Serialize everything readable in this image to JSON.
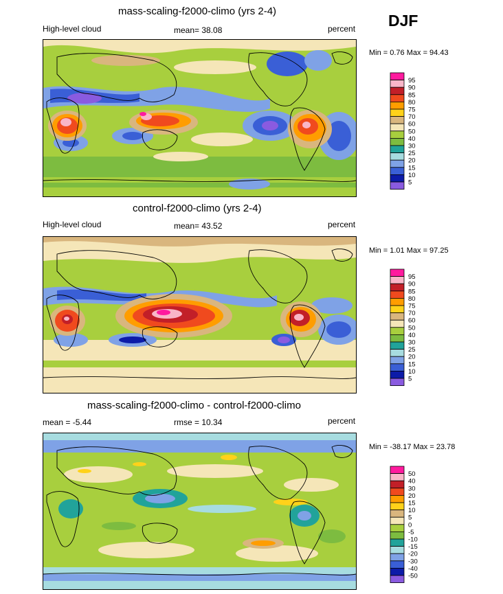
{
  "season": "DJF",
  "panels": [
    {
      "title": "mass-scaling-f2000-climo (yrs 2-4)",
      "left_label": "High-level cloud",
      "center_label": "mean=  38.08",
      "units": "percent",
      "minmax": "Min =   0.76 Max =  94.43",
      "levels": [
        "95",
        "90",
        "85",
        "80",
        "75",
        "70",
        "60",
        "50",
        "40",
        "30",
        "25",
        "20",
        "15",
        "10",
        "5"
      ],
      "colors": [
        "#ff1a9e",
        "#f9b6c8",
        "#c21f28",
        "#f04a1e",
        "#ff9d00",
        "#ffd21a",
        "#d9b67e",
        "#f5e6b8",
        "#a8cf3e",
        "#7dbc40",
        "#21a39a",
        "#a7dce0",
        "#7fa2e6",
        "#3a5fd6",
        "#0c1ba8",
        "#8a5be0"
      ]
    },
    {
      "title": "control-f2000-climo (yrs 2-4)",
      "left_label": "High-level cloud",
      "center_label": "mean=  43.52",
      "units": "percent",
      "minmax": "Min =   1.01 Max =  97.25",
      "levels": [
        "95",
        "90",
        "85",
        "80",
        "75",
        "70",
        "60",
        "50",
        "40",
        "30",
        "25",
        "20",
        "15",
        "10",
        "5"
      ],
      "colors": [
        "#ff1a9e",
        "#f9b6c8",
        "#c21f28",
        "#f04a1e",
        "#ff9d00",
        "#ffd21a",
        "#d9b67e",
        "#f5e6b8",
        "#a8cf3e",
        "#7dbc40",
        "#21a39a",
        "#a7dce0",
        "#7fa2e6",
        "#3a5fd6",
        "#0c1ba8",
        "#8a5be0"
      ]
    },
    {
      "title": "mass-scaling-f2000-climo - control-f2000-climo",
      "left_label": "mean =  -5.44",
      "center_label": "rmse =  10.34",
      "units": "percent",
      "minmax": "Min = -38.17 Max =  23.78",
      "levels": [
        "50",
        "40",
        "30",
        "20",
        "15",
        "10",
        "5",
        "0",
        "-5",
        "-10",
        "-15",
        "-20",
        "-30",
        "-40",
        "-50"
      ],
      "colors": [
        "#ff1a9e",
        "#f9b6c8",
        "#c21f28",
        "#f04a1e",
        "#ff9d00",
        "#ffd21a",
        "#d9b67e",
        "#f5e6b8",
        "#a8cf3e",
        "#7dbc40",
        "#21a39a",
        "#a7dce0",
        "#7fa2e6",
        "#3a5fd6",
        "#0c1ba8",
        "#8a5be0"
      ]
    }
  ]
}
